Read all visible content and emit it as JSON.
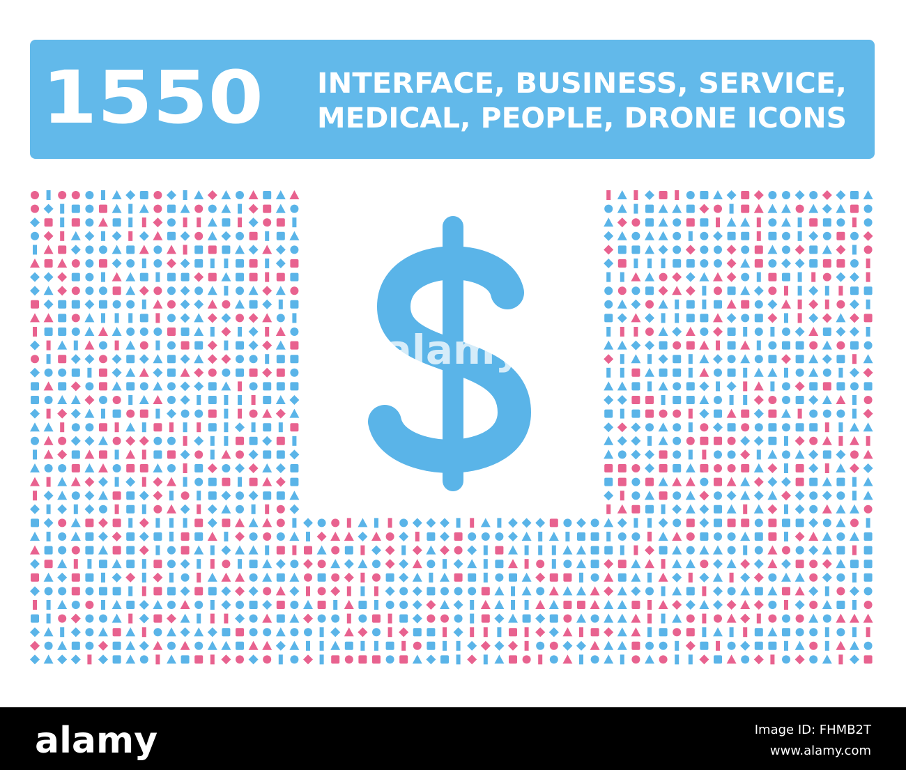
{
  "banner": {
    "count": "1550",
    "line1": "INTERFACE, BUSINESS, SERVICE,",
    "line2": "MEDICAL, PEOPLE, DRONE ICONS"
  },
  "watermark": "alamy",
  "footer": {
    "logo": "alamy",
    "image_id": "Image ID: FHMB2T",
    "url": "www.alamy.com"
  }
}
